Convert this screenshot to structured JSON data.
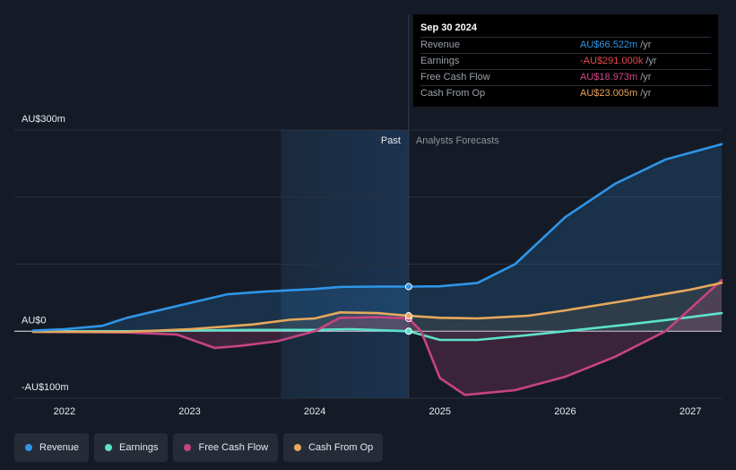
{
  "tooltip": {
    "date": "Sep 30 2024",
    "rows": [
      {
        "label": "Revenue",
        "value": "AU$66.522m",
        "unit": "/yr",
        "color": "#2f95e8"
      },
      {
        "label": "Earnings",
        "value": "-AU$291.000k",
        "unit": "/yr",
        "color": "#e64a4a"
      },
      {
        "label": "Free Cash Flow",
        "value": "AU$18.973m",
        "unit": "/yr",
        "color": "#d3478a"
      },
      {
        "label": "Cash From Op",
        "value": "AU$23.005m",
        "unit": "/yr",
        "color": "#e6a25a"
      }
    ]
  },
  "legend": [
    {
      "label": "Revenue",
      "color": "#2f95e8"
    },
    {
      "label": "Earnings",
      "color": "#5ee1cc"
    },
    {
      "label": "Free Cash Flow",
      "color": "#c6447f"
    },
    {
      "label": "Cash From Op",
      "color": "#e6a85c"
    }
  ],
  "chart_data": {
    "type": "line",
    "title": "",
    "ylabel": "AU$",
    "xlabel": "",
    "y_tick_labels": [
      "AU$300m",
      "AU$0",
      "-AU$100m"
    ],
    "ylim": [
      -100,
      300
    ],
    "xlim": [
      2021.6,
      2027.25
    ],
    "x_ticks": [
      2022,
      2023,
      2024,
      2025,
      2026,
      2027
    ],
    "x_tick_labels": [
      "2022",
      "2023",
      "2024",
      "2025",
      "2026",
      "2027"
    ],
    "past_label": "Past",
    "forecast_label": "Analysts Forecasts",
    "past_shade_start": 2023.73,
    "divider_x": 2024.75,
    "series": [
      {
        "name": "Revenue",
        "color": "#2f95e8",
        "x": [
          2021.75,
          2022.0,
          2022.3,
          2022.5,
          2023.0,
          2023.3,
          2023.6,
          2024.0,
          2024.2,
          2024.5,
          2024.75,
          2025.0,
          2025.3,
          2025.6,
          2026.0,
          2026.4,
          2026.8,
          2027.25
        ],
        "y": [
          1,
          3,
          8,
          20,
          42,
          55,
          59,
          63,
          66,
          66.5,
          66.5,
          67,
          72,
          100,
          170,
          220,
          256,
          279
        ]
      },
      {
        "name": "Earnings",
        "color": "#5ee1cc",
        "x": [
          2021.75,
          2022.5,
          2023.0,
          2023.5,
          2024.0,
          2024.3,
          2024.75,
          2025.0,
          2025.3,
          2025.7,
          2026.0,
          2026.5,
          2027.0,
          2027.25
        ],
        "y": [
          0,
          0,
          1,
          2,
          2,
          3,
          0,
          -13,
          -13,
          -6,
          0,
          10,
          21,
          27
        ]
      },
      {
        "name": "Free Cash Flow",
        "color": "#c6447f",
        "x": [
          2021.75,
          2022.5,
          2022.9,
          2023.2,
          2023.4,
          2023.7,
          2024.0,
          2024.2,
          2024.5,
          2024.75,
          2024.85,
          2025.0,
          2025.2,
          2025.6,
          2026.0,
          2026.4,
          2026.8,
          2027.25
        ],
        "y": [
          -1,
          -2,
          -5,
          -25,
          -22,
          -15,
          0,
          20,
          21,
          19,
          0,
          -70,
          -95,
          -88,
          -68,
          -38,
          0,
          76
        ]
      },
      {
        "name": "Cash From Op",
        "color": "#e6a85c",
        "x": [
          2021.75,
          2022.5,
          2023.0,
          2023.5,
          2023.8,
          2024.0,
          2024.2,
          2024.5,
          2024.75,
          2025.0,
          2025.3,
          2025.7,
          2026.0,
          2026.5,
          2027.0,
          2027.25
        ],
        "y": [
          -1,
          -1,
          3,
          10,
          17,
          19,
          28,
          27,
          23,
          20,
          19,
          23,
          31,
          46,
          62,
          72
        ]
      }
    ]
  }
}
